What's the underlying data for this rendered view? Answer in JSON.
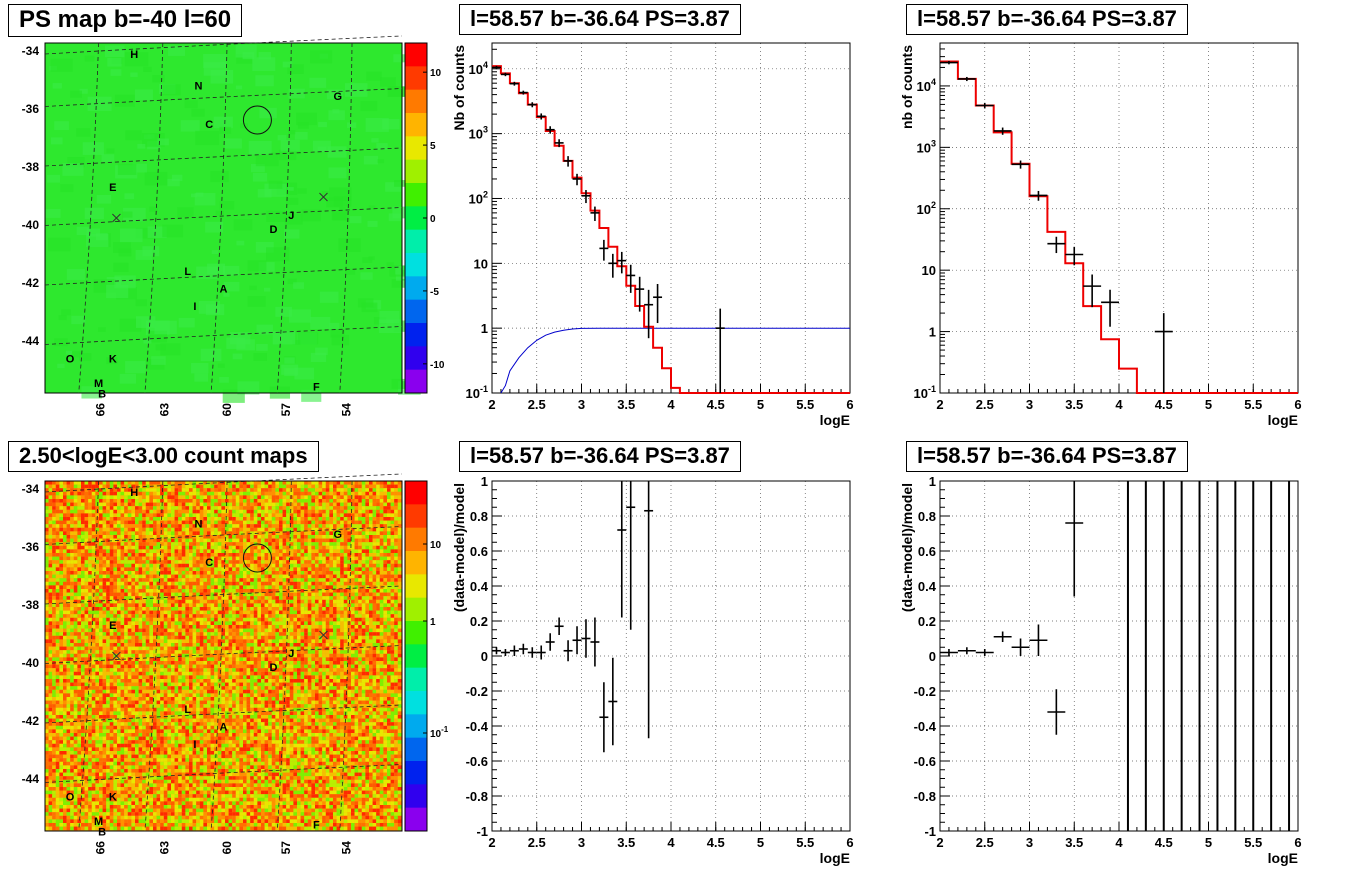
{
  "chart_data": [
    {
      "type": "heatmap",
      "title": "PS map b=-40 l=60",
      "y_tick_labels": [
        "-34",
        "-36",
        "-38",
        "-40",
        "-42",
        "-44"
      ],
      "x_tick_labels": [
        "66",
        "63",
        "60",
        "57",
        "54"
      ],
      "colorbar_ticks": [
        "10",
        "5",
        "0",
        "-5",
        "-10"
      ],
      "colorbar_range": [
        -12,
        12
      ],
      "source_labels": [
        "H",
        "N",
        "G",
        "C",
        "E",
        "J",
        "D",
        "L",
        "A",
        "I",
        "O",
        "K",
        "M",
        "B",
        "F"
      ],
      "dominant_color": "#2ee82e"
    },
    {
      "type": "line",
      "title": "l=58.57 b=-36.64 PS=3.87",
      "xlabel": "logE",
      "ylabel": "Nb of counts",
      "xlim": [
        2,
        6
      ],
      "ylim": [
        0.1,
        25000
      ],
      "log_y": true,
      "grid": true,
      "x_tick_labels": [
        "2",
        "2.5",
        "3",
        "3.5",
        "4",
        "4.5",
        "5",
        "5.5",
        "6"
      ],
      "y_tick_labels": [
        "10^-1",
        "1",
        "10",
        "10^2",
        "10^3",
        "10^4"
      ],
      "model_bin_edges": [
        2.0,
        2.1,
        2.2,
        2.3,
        2.4,
        2.5,
        2.6,
        2.7,
        2.8,
        2.9,
        3.0,
        3.1,
        3.2,
        3.3,
        3.4,
        3.5,
        3.6,
        3.7,
        3.8,
        3.9,
        4.0,
        4.1,
        4.2,
        6.0
      ],
      "model_values": [
        11000,
        8500,
        6000,
        4200,
        2800,
        1800,
        1100,
        650,
        380,
        210,
        120,
        65,
        35,
        18,
        9,
        4.5,
        2.2,
        1.05,
        0.5,
        0.24,
        0.12,
        0.1,
        0.1
      ],
      "blue_curve_x": [
        2.1,
        2.15,
        2.2,
        2.3,
        2.4,
        2.5,
        2.6,
        2.7,
        2.8,
        2.9,
        3.0,
        3.2,
        3.4,
        3.6,
        6.0
      ],
      "blue_curve_y": [
        0.1,
        0.13,
        0.22,
        0.35,
        0.5,
        0.65,
        0.78,
        0.87,
        0.93,
        0.97,
        0.99,
        1.0,
        1.0,
        1.0,
        1.0
      ],
      "data_points": [
        {
          "x": 2.05,
          "y": 10500,
          "err": 600
        },
        {
          "x": 2.15,
          "y": 8200,
          "err": 500
        },
        {
          "x": 2.25,
          "y": 5900,
          "err": 400
        },
        {
          "x": 2.35,
          "y": 4300,
          "err": 300
        },
        {
          "x": 2.45,
          "y": 2800,
          "err": 250
        },
        {
          "x": 2.55,
          "y": 1850,
          "err": 200
        },
        {
          "x": 2.65,
          "y": 1150,
          "err": 150
        },
        {
          "x": 2.75,
          "y": 720,
          "err": 100
        },
        {
          "x": 2.85,
          "y": 380,
          "err": 70
        },
        {
          "x": 2.95,
          "y": 200,
          "err": 40
        },
        {
          "x": 3.05,
          "y": 110,
          "err": 25
        },
        {
          "x": 3.15,
          "y": 60,
          "err": 15
        },
        {
          "x": 3.25,
          "y": 17,
          "err": 6
        },
        {
          "x": 3.35,
          "y": 10,
          "err": 4
        },
        {
          "x": 3.45,
          "y": 11,
          "err": 4
        },
        {
          "x": 3.55,
          "y": 6.5,
          "err": 3
        },
        {
          "x": 3.65,
          "y": 4,
          "err": 2.2
        },
        {
          "x": 3.75,
          "y": 2.3,
          "err": 1.6
        },
        {
          "x": 3.85,
          "y": 3,
          "err": 1.8
        },
        {
          "x": 4.55,
          "y": 1,
          "err": 1
        }
      ],
      "colors": {
        "model": "#ee0000",
        "data": "#000000",
        "acceptance": "#0000cc"
      }
    },
    {
      "type": "line",
      "title": "l=58.57 b=-36.64 PS=3.87",
      "xlabel": "logE",
      "ylabel": "nb of counts",
      "xlim": [
        2,
        6
      ],
      "ylim": [
        0.1,
        50000
      ],
      "log_y": true,
      "grid": true,
      "x_tick_labels": [
        "2",
        "2.5",
        "3",
        "3.5",
        "4",
        "4.5",
        "5",
        "5.5",
        "6"
      ],
      "y_tick_labels": [
        "10^-1",
        "1",
        "10",
        "10^2",
        "10^3",
        "10^4"
      ],
      "model_bin_edges": [
        2.0,
        2.2,
        2.4,
        2.6,
        2.8,
        3.0,
        3.2,
        3.4,
        3.6,
        3.8,
        4.0,
        4.2,
        6.0
      ],
      "model_values": [
        25000,
        13000,
        4800,
        1750,
        540,
        160,
        42,
        13,
        2.6,
        0.75,
        0.25,
        0.1
      ],
      "data_points": [
        {
          "x": 2.1,
          "y": 24000,
          "err": 1500
        },
        {
          "x": 2.3,
          "y": 13000,
          "err": 1000
        },
        {
          "x": 2.5,
          "y": 4800,
          "err": 500
        },
        {
          "x": 2.7,
          "y": 1850,
          "err": 250
        },
        {
          "x": 2.9,
          "y": 530,
          "err": 80
        },
        {
          "x": 3.1,
          "y": 165,
          "err": 30
        },
        {
          "x": 3.3,
          "y": 27,
          "err": 8
        },
        {
          "x": 3.5,
          "y": 18,
          "err": 6
        },
        {
          "x": 3.7,
          "y": 5.5,
          "err": 3
        },
        {
          "x": 3.9,
          "y": 3,
          "err": 1.8
        },
        {
          "x": 4.5,
          "y": 1,
          "err": 1
        }
      ],
      "colors": {
        "model": "#ee0000",
        "data": "#000000"
      }
    },
    {
      "type": "heatmap",
      "title": "2.50<logE<3.00 count maps",
      "y_tick_labels": [
        "-34",
        "-36",
        "-38",
        "-40",
        "-42",
        "-44"
      ],
      "x_tick_labels": [
        "66",
        "63",
        "60",
        "57",
        "54"
      ],
      "colorbar_ticks": [
        "10",
        "1",
        "10^-1"
      ],
      "log_scale": true,
      "source_labels": [
        "H",
        "N",
        "G",
        "C",
        "E",
        "J",
        "D",
        "L",
        "A",
        "I",
        "O",
        "K",
        "M",
        "B",
        "F"
      ]
    },
    {
      "type": "scatter",
      "title": "l=58.57 b=-36.64 PS=3.87",
      "xlabel": "logE",
      "ylabel": "(data-model)/model",
      "xlim": [
        2,
        6
      ],
      "ylim": [
        -1,
        1
      ],
      "grid": true,
      "x_tick_labels": [
        "2",
        "2.5",
        "3",
        "3.5",
        "4",
        "4.5",
        "5",
        "5.5",
        "6"
      ],
      "y_tick_labels": [
        "-1",
        "-0.8",
        "-0.6",
        "-0.4",
        "-0.2",
        "0",
        "0.2",
        "0.4",
        "0.6",
        "0.8",
        "1"
      ],
      "points": [
        {
          "x": 2.05,
          "y": 0.03,
          "err": 0.02
        },
        {
          "x": 2.15,
          "y": 0.02,
          "err": 0.02
        },
        {
          "x": 2.25,
          "y": 0.03,
          "err": 0.03
        },
        {
          "x": 2.35,
          "y": 0.04,
          "err": 0.03
        },
        {
          "x": 2.45,
          "y": 0.02,
          "err": 0.03
        },
        {
          "x": 2.55,
          "y": 0.02,
          "err": 0.04
        },
        {
          "x": 2.65,
          "y": 0.08,
          "err": 0.05
        },
        {
          "x": 2.75,
          "y": 0.17,
          "err": 0.05
        },
        {
          "x": 2.85,
          "y": 0.03,
          "err": 0.06
        },
        {
          "x": 2.95,
          "y": 0.09,
          "err": 0.08
        },
        {
          "x": 3.05,
          "y": 0.1,
          "err": 0.11
        },
        {
          "x": 3.15,
          "y": 0.08,
          "err": 0.14
        },
        {
          "x": 3.25,
          "y": -0.35,
          "err": 0.2
        },
        {
          "x": 3.35,
          "y": -0.26,
          "err": 0.25
        },
        {
          "x": 3.45,
          "y": 0.72,
          "err": 0.5
        },
        {
          "x": 3.55,
          "y": 0.85,
          "err": 0.7
        },
        {
          "x": 3.75,
          "y": 0.83,
          "err": 1.3
        }
      ]
    },
    {
      "type": "scatter",
      "title": "l=58.57 b=-36.64 PS=3.87",
      "xlabel": "logE",
      "ylabel": "(data-model)/model",
      "xlim": [
        2,
        6
      ],
      "ylim": [
        -1,
        1
      ],
      "grid": true,
      "x_tick_labels": [
        "2",
        "2.5",
        "3",
        "3.5",
        "4",
        "4.5",
        "5",
        "5.5",
        "6"
      ],
      "y_tick_labels": [
        "-1",
        "-0.8",
        "-0.6",
        "-0.4",
        "-0.2",
        "0",
        "0.2",
        "0.4",
        "0.6",
        "0.8",
        "1"
      ],
      "points": [
        {
          "x": 2.1,
          "y": 0.02,
          "err": 0.02
        },
        {
          "x": 2.3,
          "y": 0.03,
          "err": 0.02
        },
        {
          "x": 2.5,
          "y": 0.02,
          "err": 0.02
        },
        {
          "x": 2.7,
          "y": 0.11,
          "err": 0.03
        },
        {
          "x": 2.9,
          "y": 0.05,
          "err": 0.05
        },
        {
          "x": 3.1,
          "y": 0.09,
          "err": 0.09
        },
        {
          "x": 3.3,
          "y": -0.32,
          "err": 0.13
        },
        {
          "x": 3.5,
          "y": 0.76,
          "err": 0.42
        }
      ],
      "full_range_error_bars_x": [
        4.1,
        4.3,
        4.5,
        4.7,
        4.9,
        5.1,
        5.3,
        5.5,
        5.7,
        5.9
      ]
    }
  ]
}
